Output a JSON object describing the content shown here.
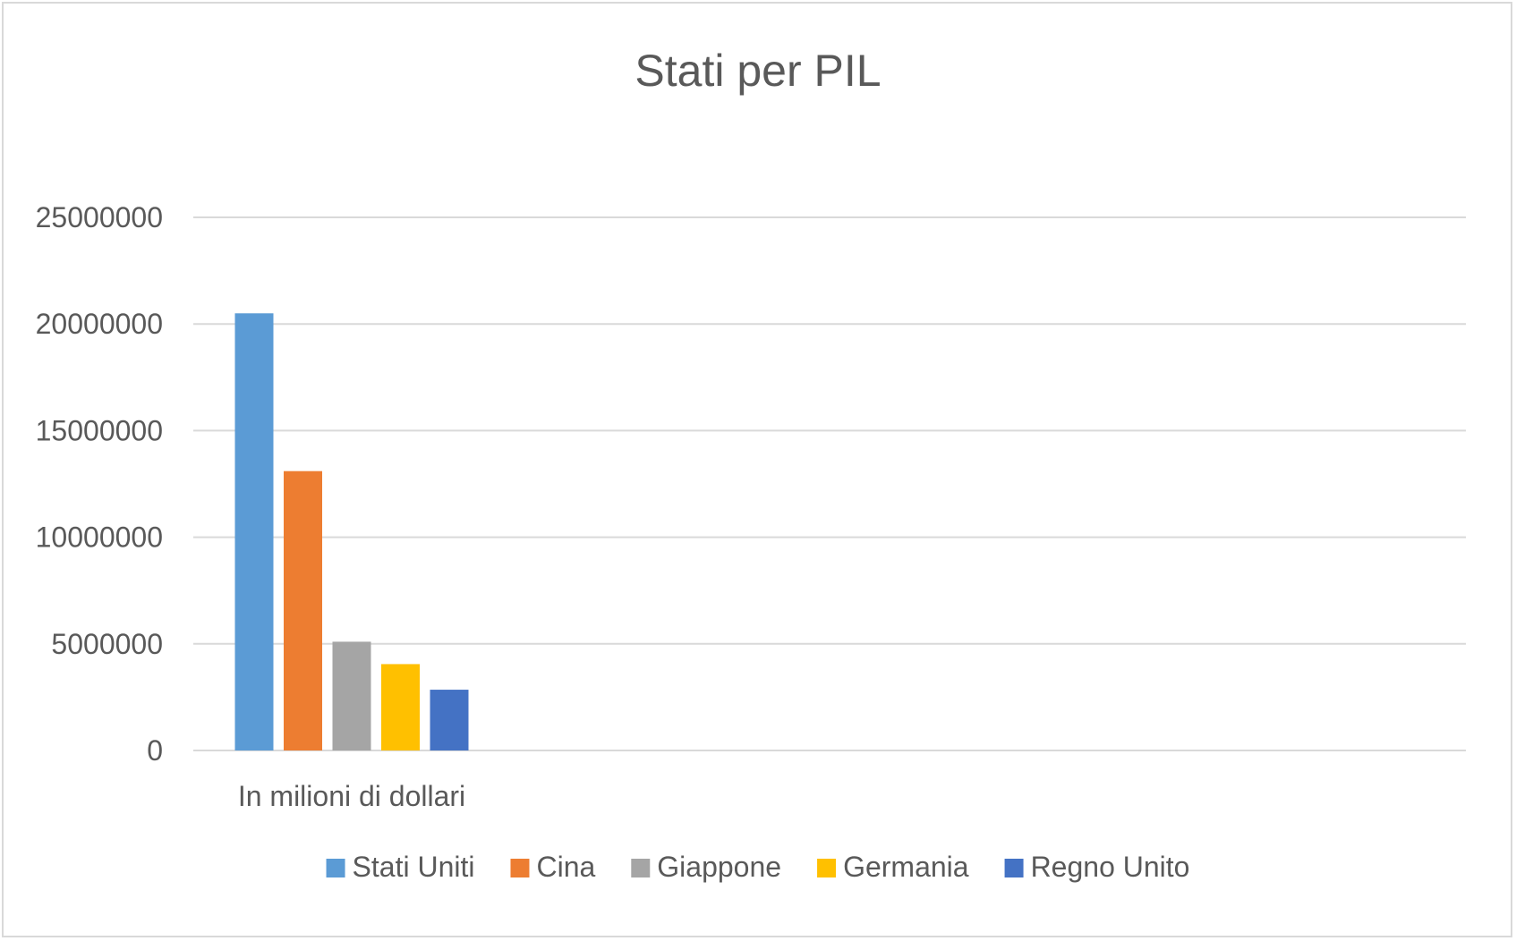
{
  "chart_data": {
    "type": "bar",
    "title": "Stati per PIL",
    "categories": [
      "In milioni di dollari"
    ],
    "series": [
      {
        "name": "Stati Uniti",
        "values": [
          20500000
        ],
        "color": "#5b9bd5"
      },
      {
        "name": "Cina",
        "values": [
          13100000
        ],
        "color": "#ed7d31"
      },
      {
        "name": "Giappone",
        "values": [
          5100000
        ],
        "color": "#a5a5a5"
      },
      {
        "name": "Germania",
        "values": [
          4050000
        ],
        "color": "#ffc000"
      },
      {
        "name": "Regno Unito",
        "values": [
          2850000
        ],
        "color": "#4472c4"
      }
    ],
    "ylim": [
      0,
      25000000
    ],
    "yticks": [
      "0",
      "5000000",
      "10000000",
      "15000000",
      "20000000",
      "25000000"
    ],
    "grid": true,
    "legend_position": "bottom"
  }
}
